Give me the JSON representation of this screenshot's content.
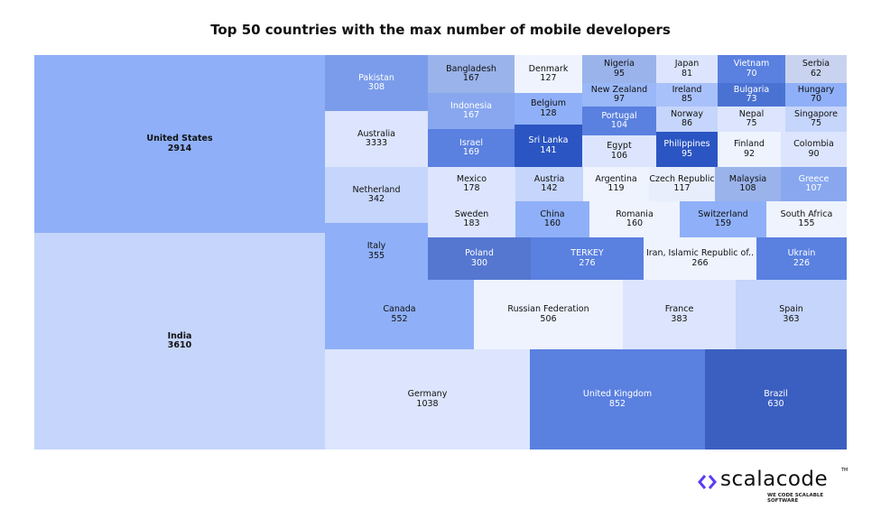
{
  "chart_data": {
    "type": "treemap",
    "title": "Top 50 countries with the max number of mobile developers",
    "items": [
      {
        "name": "United States",
        "value": "2914",
        "color": "#8fb0f8"
      },
      {
        "name": "India",
        "value": "3610",
        "color": "#c5d5fb"
      },
      {
        "name": "Pakistan",
        "value": "308",
        "color": "#7a9cea"
      },
      {
        "name": "Australia",
        "value": "3333",
        "color": "#dce5fd"
      },
      {
        "name": "Netherland",
        "value": "342",
        "color": "#c5d5fb"
      },
      {
        "name": "Italy",
        "value": "355",
        "color": "#8fb0f8"
      },
      {
        "name": "Bangladesh",
        "value": "167",
        "color": "#9ab3ea"
      },
      {
        "name": "Indonesia",
        "value": "167",
        "color": "#88a7ef"
      },
      {
        "name": "Israel",
        "value": "169",
        "color": "#5a80e0"
      },
      {
        "name": "Denmark",
        "value": "127",
        "color": "#eef3fe"
      },
      {
        "name": "Belgium",
        "value": "128",
        "color": "#8fb0f8"
      },
      {
        "name": "Sri Lanka",
        "value": "141",
        "color": "#2b55c2"
      },
      {
        "name": "Nigeria",
        "value": "95",
        "color": "#9ab3ea"
      },
      {
        "name": "New Zealand",
        "value": "97",
        "color": "#9ab8f8"
      },
      {
        "name": "Portugal",
        "value": "104",
        "color": "#5a80e0"
      },
      {
        "name": "Egypt",
        "value": "106",
        "color": "#dce5fd"
      },
      {
        "name": "Japan",
        "value": "81",
        "color": "#dce5fd"
      },
      {
        "name": "Ireland",
        "value": "85",
        "color": "#a9c1fa"
      },
      {
        "name": "Norway",
        "value": "86",
        "color": "#c5d5fb"
      },
      {
        "name": "Philippines",
        "value": "95",
        "color": "#2b55c2"
      },
      {
        "name": "Vietnam",
        "value": "70",
        "color": "#5a80e0"
      },
      {
        "name": "Bulgaria",
        "value": "73",
        "color": "#4a72d2"
      },
      {
        "name": "Nepal",
        "value": "75",
        "color": "#dce5fd"
      },
      {
        "name": "Finland",
        "value": "92",
        "color": "#eef3fe"
      },
      {
        "name": "Serbia",
        "value": "62",
        "color": "#c9d3ef"
      },
      {
        "name": "Hungary",
        "value": "70",
        "color": "#8fb0f8"
      },
      {
        "name": "Singapore",
        "value": "75",
        "color": "#c5d5fb"
      },
      {
        "name": "Colombia",
        "value": "90",
        "color": "#dce5fd"
      },
      {
        "name": "Mexico",
        "value": "178",
        "color": "#dce5fd"
      },
      {
        "name": "Austria",
        "value": "142",
        "color": "#c5d5fb"
      },
      {
        "name": "Argentina",
        "value": "119",
        "color": "#eef3fe"
      },
      {
        "name": "Czech Republic",
        "value": "117",
        "color": "#e8eefc"
      },
      {
        "name": "Malaysia",
        "value": "108",
        "color": "#9ab3ea"
      },
      {
        "name": "Greece",
        "value": "107",
        "color": "#88a7ef"
      },
      {
        "name": "Sweden",
        "value": "183",
        "color": "#dce5fd"
      },
      {
        "name": "China",
        "value": "160",
        "color": "#8fb0f8"
      },
      {
        "name": "Romania",
        "value": "160",
        "color": "#eef3fe"
      },
      {
        "name": "Switzerland",
        "value": "159",
        "color": "#8fb0f8"
      },
      {
        "name": "South Africa",
        "value": "155",
        "color": "#eef3fe"
      },
      {
        "name": "Poland",
        "value": "300",
        "color": "#5577d0"
      },
      {
        "name": "TERKEY",
        "value": "276",
        "color": "#5a80e0"
      },
      {
        "name": "Iran, Islamic Republic of..",
        "value": "266",
        "color": "#eef3fe"
      },
      {
        "name": "Ukrain",
        "value": "226",
        "color": "#5a80e0"
      },
      {
        "name": "Canada",
        "value": "552",
        "color": "#8fb0f8"
      },
      {
        "name": "Russian Federation",
        "value": "506",
        "color": "#eef3fe"
      },
      {
        "name": "France",
        "value": "383",
        "color": "#dce5fd"
      },
      {
        "name": "Spain",
        "value": "363",
        "color": "#c5d5fb"
      },
      {
        "name": "Germany",
        "value": "1038",
        "color": "#dce5fd"
      },
      {
        "name": "United Kingdom",
        "value": "852",
        "color": "#5a80e0"
      },
      {
        "name": "Brazil",
        "value": "630",
        "color": "#3a5fc0"
      }
    ]
  },
  "logo": {
    "brand": "scalacode",
    "tagline": "WE CODE SCALABLE SOFTWARE",
    "tm": "TM",
    "accent": "#5b3df5"
  }
}
